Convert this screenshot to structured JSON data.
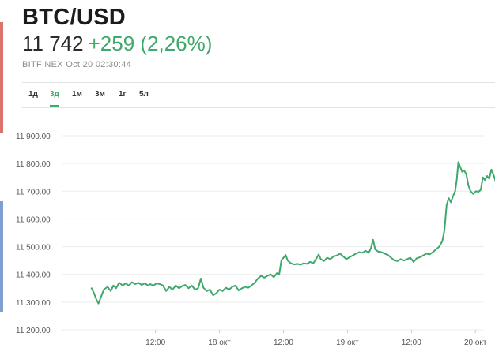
{
  "header": {
    "title": "BTC/USD",
    "price": "11 742",
    "change": "+259 (2,26%)",
    "source": "BITFINEX Oct 20 02:30:44"
  },
  "tabs": [
    {
      "label": "1д",
      "active": false
    },
    {
      "label": "3д",
      "active": true
    },
    {
      "label": "1м",
      "active": false
    },
    {
      "label": "3м",
      "active": false
    },
    {
      "label": "1г",
      "active": false
    },
    {
      "label": "5л",
      "active": false
    }
  ],
  "colors": {
    "accent": "#3fa86b",
    "line": "#3fa86b",
    "grid": "#ececec",
    "text": "#222222"
  },
  "chart_data": {
    "type": "line",
    "title": "",
    "xlabel": "",
    "ylabel": "",
    "x_ticks": [
      {
        "label": "12:00",
        "x": 12
      },
      {
        "label": "18 окт",
        "x": 24
      },
      {
        "label": "12:00",
        "x": 36
      },
      {
        "label": "19 окт",
        "x": 48
      },
      {
        "label": "12:00",
        "x": 60
      },
      {
        "label": "20 окт",
        "x": 72
      }
    ],
    "y_ticks": [
      {
        "label": "11 200.00",
        "v": 11200
      },
      {
        "label": "11 300.00",
        "v": 11300
      },
      {
        "label": "11 400.00",
        "v": 11400
      },
      {
        "label": "11 500.00",
        "v": 11500
      },
      {
        "label": "11 600.00",
        "v": 11600
      },
      {
        "label": "11 700.00",
        "v": 11700
      },
      {
        "label": "11 800.00",
        "v": 11800
      },
      {
        "label": "11 900.00",
        "v": 11900
      }
    ],
    "xlim": [
      -5.6,
      73.6
    ],
    "ylim": [
      11200,
      11900
    ],
    "grid": true,
    "series": [
      {
        "values": [
          [
            0,
            11350
          ],
          [
            0.4,
            11335
          ],
          [
            0.9,
            11310
          ],
          [
            1.3,
            11295
          ],
          [
            1.8,
            11320
          ],
          [
            2.3,
            11345
          ],
          [
            3,
            11355
          ],
          [
            3.6,
            11340
          ],
          [
            4.1,
            11360
          ],
          [
            4.6,
            11350
          ],
          [
            5.2,
            11370
          ],
          [
            5.8,
            11360
          ],
          [
            6.4,
            11368
          ],
          [
            7,
            11360
          ],
          [
            7.6,
            11372
          ],
          [
            8.2,
            11365
          ],
          [
            8.8,
            11370
          ],
          [
            9.4,
            11362
          ],
          [
            10,
            11368
          ],
          [
            10.6,
            11360
          ],
          [
            11,
            11365
          ],
          [
            11.6,
            11360
          ],
          [
            12.2,
            11368
          ],
          [
            12.8,
            11365
          ],
          [
            13.4,
            11360
          ],
          [
            14,
            11340
          ],
          [
            14.6,
            11355
          ],
          [
            15.2,
            11345
          ],
          [
            15.8,
            11360
          ],
          [
            16.4,
            11350
          ],
          [
            17,
            11358
          ],
          [
            17.6,
            11362
          ],
          [
            18.2,
            11350
          ],
          [
            18.8,
            11360
          ],
          [
            19.4,
            11345
          ],
          [
            20,
            11350
          ],
          [
            20.5,
            11385
          ],
          [
            21,
            11352
          ],
          [
            21.6,
            11340
          ],
          [
            22.2,
            11345
          ],
          [
            22.8,
            11325
          ],
          [
            23.4,
            11332
          ],
          [
            24,
            11345
          ],
          [
            24.6,
            11340
          ],
          [
            25.2,
            11352
          ],
          [
            25.8,
            11345
          ],
          [
            26.4,
            11355
          ],
          [
            27,
            11360
          ],
          [
            27.6,
            11342
          ],
          [
            28.2,
            11350
          ],
          [
            28.8,
            11355
          ],
          [
            29.4,
            11352
          ],
          [
            30,
            11360
          ],
          [
            30.6,
            11370
          ],
          [
            31.2,
            11385
          ],
          [
            31.8,
            11395
          ],
          [
            32.4,
            11388
          ],
          [
            33,
            11395
          ],
          [
            33.6,
            11400
          ],
          [
            34.2,
            11390
          ],
          [
            34.8,
            11405
          ],
          [
            35.2,
            11400
          ],
          [
            35.6,
            11450
          ],
          [
            36,
            11460
          ],
          [
            36.4,
            11470
          ],
          [
            36.8,
            11450
          ],
          [
            37.4,
            11440
          ],
          [
            38,
            11436
          ],
          [
            38.6,
            11438
          ],
          [
            39.2,
            11435
          ],
          [
            39.8,
            11440
          ],
          [
            40.4,
            11438
          ],
          [
            41,
            11445
          ],
          [
            41.6,
            11440
          ],
          [
            42.2,
            11458
          ],
          [
            42.6,
            11472
          ],
          [
            43,
            11455
          ],
          [
            43.6,
            11448
          ],
          [
            44.2,
            11460
          ],
          [
            44.8,
            11455
          ],
          [
            45.4,
            11465
          ],
          [
            46,
            11468
          ],
          [
            46.6,
            11475
          ],
          [
            47.2,
            11465
          ],
          [
            47.8,
            11455
          ],
          [
            48.4,
            11462
          ],
          [
            49,
            11468
          ],
          [
            49.6,
            11475
          ],
          [
            50.2,
            11480
          ],
          [
            50.8,
            11478
          ],
          [
            51.4,
            11485
          ],
          [
            52,
            11478
          ],
          [
            52.4,
            11495
          ],
          [
            52.8,
            11525
          ],
          [
            53.2,
            11490
          ],
          [
            53.8,
            11482
          ],
          [
            54.4,
            11480
          ],
          [
            55,
            11475
          ],
          [
            55.6,
            11470
          ],
          [
            56.2,
            11460
          ],
          [
            56.8,
            11450
          ],
          [
            57.4,
            11448
          ],
          [
            58,
            11455
          ],
          [
            58.6,
            11450
          ],
          [
            59.2,
            11455
          ],
          [
            59.8,
            11460
          ],
          [
            60.4,
            11445
          ],
          [
            61,
            11458
          ],
          [
            61.6,
            11462
          ],
          [
            62.2,
            11468
          ],
          [
            62.8,
            11475
          ],
          [
            63.4,
            11472
          ],
          [
            64,
            11480
          ],
          [
            64.6,
            11490
          ],
          [
            65.2,
            11500
          ],
          [
            65.8,
            11520
          ],
          [
            66.2,
            11560
          ],
          [
            66.6,
            11650
          ],
          [
            67,
            11675
          ],
          [
            67.4,
            11660
          ],
          [
            67.8,
            11682
          ],
          [
            68.2,
            11700
          ],
          [
            68.5,
            11740
          ],
          [
            68.8,
            11805
          ],
          [
            69.1,
            11790
          ],
          [
            69.5,
            11770
          ],
          [
            69.9,
            11775
          ],
          [
            70.3,
            11760
          ],
          [
            70.7,
            11720
          ],
          [
            71.1,
            11700
          ],
          [
            71.6,
            11690
          ],
          [
            72.1,
            11700
          ],
          [
            72.6,
            11698
          ],
          [
            73,
            11705
          ],
          [
            73.4,
            11750
          ],
          [
            73.8,
            11740
          ],
          [
            74.2,
            11755
          ],
          [
            74.6,
            11745
          ],
          [
            75,
            11778
          ],
          [
            75.4,
            11760
          ],
          [
            75.8,
            11735
          ],
          [
            76.1,
            11742
          ]
        ]
      }
    ]
  }
}
